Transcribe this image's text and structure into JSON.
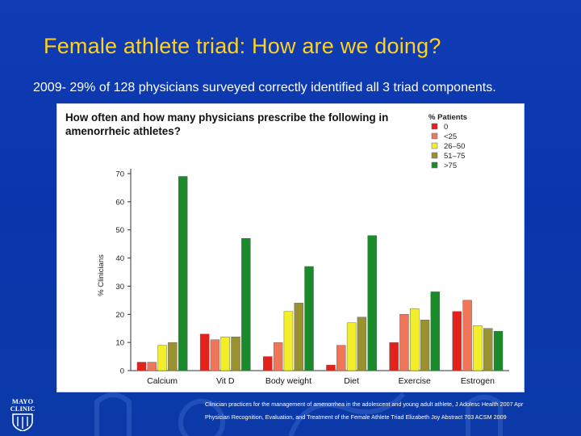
{
  "slide": {
    "title": "Female athlete triad: How are we doing?",
    "subtitle": "2009- 29% of 128 physicians surveyed correctly identified all 3 triad components."
  },
  "citation": {
    "line1": "Clinician practices for the management of amenorrhea in the adolescent and young adult athlete, J Adolesc Health 2007 Apr",
    "line2": "Physician Recognition, Evaluation, and Treatment of the Female Athlete Triad Elizabeth Joy Abstract 703 ACSM 2009"
  },
  "logo": {
    "text_top": "MAYO",
    "text_bottom": "CLINIC"
  },
  "colors": {
    "background": "#0b3aa8",
    "title": "#ffd21f",
    "subtitle": "#ffffff"
  },
  "chart_data": {
    "type": "bar",
    "title_line1": "How often and how many physicians prescribe the following in",
    "title_line2": "amenorrheic athletes?",
    "ylabel": "% Clinicians",
    "xlabel": "",
    "ylim": [
      0,
      70
    ],
    "yticks": [
      0,
      10,
      20,
      30,
      40,
      50,
      60,
      70
    ],
    "legend_title": "% Patients",
    "legend_position": "top-right",
    "categories": [
      "Calcium",
      "Vit D",
      "Body weight",
      "Diet",
      "Exercise",
      "Estrogen"
    ],
    "series": [
      {
        "name": "0",
        "color": "#e3231b",
        "values": [
          3,
          13,
          5,
          2,
          10,
          21
        ]
      },
      {
        "name": "<25",
        "color": "#f0765a",
        "values": [
          3,
          11,
          10,
          9,
          20,
          25
        ]
      },
      {
        "name": "26–50",
        "color": "#f2ee2a",
        "values": [
          9,
          12,
          21,
          17,
          22,
          16
        ]
      },
      {
        "name": "51–75",
        "color": "#9a9230",
        "values": [
          10,
          12,
          24,
          19,
          18,
          15
        ]
      },
      {
        "name": ">75",
        "color": "#1b8a2b",
        "values": [
          69,
          47,
          37,
          48,
          28,
          14
        ]
      }
    ]
  }
}
